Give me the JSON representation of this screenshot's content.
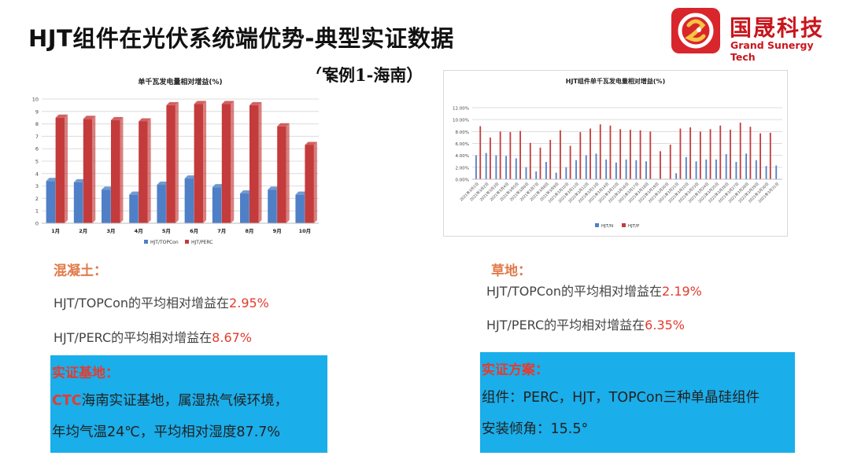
{
  "header": {
    "title": "HJT组件在光伏系统端优势-典型实证数据",
    "subtitle": "（案例1-海南）"
  },
  "logo": {
    "name_cn": "国晟科技",
    "name_en": "Grand Sunergy Tech",
    "color": "#c8161d"
  },
  "chart_data": [
    {
      "type": "bar",
      "title": "单千瓦发电量相对增益(%)",
      "categories": [
        "1月",
        "2月",
        "3月",
        "4月",
        "5月",
        "6月",
        "7月",
        "8月",
        "9月",
        "10月"
      ],
      "series": [
        {
          "name": "HJT/TOPCon",
          "color": "#4f7fc6",
          "values": [
            3.4,
            3.3,
            2.7,
            2.3,
            3.1,
            3.6,
            2.9,
            2.4,
            2.7,
            2.3
          ]
        },
        {
          "name": "HJT/PERC",
          "color": "#c43b3b",
          "values": [
            8.5,
            8.4,
            8.3,
            8.2,
            9.5,
            9.6,
            9.6,
            9.5,
            7.8,
            6.3
          ]
        }
      ],
      "yticks": [
        "0",
        "1",
        "2",
        "3",
        "4",
        "5",
        "6",
        "7",
        "8",
        "9",
        "10"
      ],
      "ylim": [
        0,
        10
      ],
      "grid": true,
      "legend_position": "bottom"
    },
    {
      "type": "bar",
      "title": "HJT组件单千瓦发电量相对增益(%)",
      "categories": [
        "2021年3月1日",
        "2021年3月2日",
        "2021年3月3日",
        "2021年3月4日",
        "2021年3月5日",
        "2021年3月6日",
        "2021年3月7日",
        "2021年3月8日",
        "2021年3月9日",
        "2021年3月10日",
        "2021年3月11日",
        "2021年3月12日",
        "2021年3月13日",
        "2021年3月14日",
        "2021年3月15日",
        "2021年3月16日",
        "2021年3月17日",
        "2021年3月18日",
        "2021年3月19日",
        "2021年3月20日",
        "2021年3月21日",
        "2021年3月22日",
        "2021年3月23日",
        "2021年3月24日",
        "2021年3月25日",
        "2021年3月26日",
        "2021年3月27日",
        "2021年3月28日",
        "2021年3月29日",
        "2021年3月30日",
        "2021年3月31日"
      ],
      "series": [
        {
          "name": "HJT/N",
          "color": "#4f7fc6",
          "values": [
            4.0,
            4.4,
            4.0,
            3.9,
            3.5,
            2.0,
            1.3,
            2.9,
            1.1,
            2.0,
            3.2,
            4.0,
            4.3,
            3.3,
            2.8,
            3.3,
            3.2,
            3.0,
            0,
            0,
            1.0,
            3.7,
            3.0,
            3.3,
            3.3,
            4.2,
            2.9,
            4.3,
            3.2,
            2.2,
            2.3
          ]
        },
        {
          "name": "HJT/P",
          "color": "#c43b3b",
          "values": [
            8.9,
            7.0,
            8.0,
            7.9,
            8.1,
            6.1,
            5.3,
            6.6,
            8.2,
            5.6,
            7.9,
            8.5,
            9.2,
            9.0,
            8.4,
            8.3,
            8.2,
            8.0,
            4.7,
            5.8,
            8.5,
            8.7,
            8.0,
            8.4,
            9.0,
            8.3,
            9.5,
            8.8,
            7.7,
            7.8,
            0
          ]
        }
      ],
      "yticks": [
        "0.00%",
        "2.00%",
        "4.00%",
        "6.00%",
        "8.00%",
        "10.00%",
        "12.00%"
      ],
      "ylim": [
        0,
        12
      ],
      "grid": true,
      "legend_position": "bottom"
    }
  ],
  "left": {
    "section": "混凝土：",
    "stat1_prefix": "HJT/TOPCon的平均相对增益在",
    "stat1_value": "2.95%",
    "stat2_prefix": "HJT/PERC的平均相对增益在",
    "stat2_value": "8.67%",
    "box_title": "实证基地：",
    "box_highlight": "CTC",
    "box_line1_rest": "海南实证基地，属湿热气候环境，",
    "box_line2": "年均气温24℃，平均相对湿度87.7%"
  },
  "right": {
    "section": "草地：",
    "stat1_prefix": "HJT/TOPCon的平均相对增益在",
    "stat1_value": "2.19%",
    "stat2_prefix": "HJT/PERC的平均相对增益在",
    "stat2_value": "6.35%",
    "box_title": "实证方案：",
    "box_line1": "组件：PERC，HJT，TOPCon三种单晶硅组件",
    "box_line2": "安装倾角：15.5°"
  },
  "colors": {
    "accent_red": "#e23b2e",
    "section_orange": "#e07a4a",
    "box_blue": "#1aaeea"
  }
}
